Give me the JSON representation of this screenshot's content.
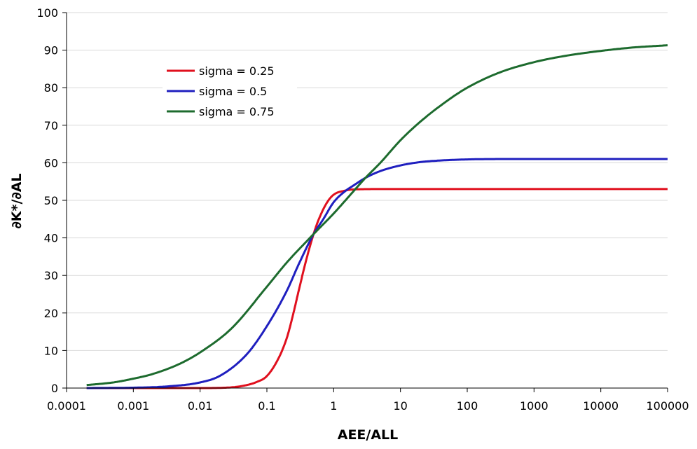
{
  "chart_data": {
    "type": "line",
    "xscale": "log",
    "xlim": [
      0.0001,
      100000
    ],
    "ylim": [
      0,
      100
    ],
    "x_ticks": [
      "0.0001",
      "0.001",
      "0.01",
      "0.1",
      "1",
      "10",
      "100",
      "1000",
      "10000",
      "100000"
    ],
    "y_ticks": [
      "0",
      "10",
      "20",
      "30",
      "40",
      "50",
      "60",
      "70",
      "80",
      "90",
      "100"
    ],
    "xlabel": "AEE/ALL",
    "ylabel": "∂K*/∂AL",
    "grid": "horizontal",
    "legend": "upper-left",
    "series": [
      {
        "name": "sigma = 0.25",
        "color": "#e0101e",
        "x": [
          0.0002,
          0.01,
          0.03,
          0.05,
          0.07,
          0.1,
          0.15,
          0.2,
          0.25,
          0.3,
          0.4,
          0.5,
          0.6,
          0.8,
          1,
          1.5,
          2,
          5,
          100000
        ],
        "y": [
          0,
          0,
          0.2,
          0.8,
          1.6,
          3.2,
          8,
          13.5,
          20,
          26,
          35,
          41,
          45,
          49.5,
          51.5,
          52.6,
          52.9,
          53,
          53
        ]
      },
      {
        "name": "sigma = 0.5",
        "color": "#1f1fbf",
        "x": [
          0.0002,
          0.001,
          0.003,
          0.01,
          0.02,
          0.05,
          0.1,
          0.2,
          0.3,
          0.5,
          0.7,
          1,
          1.5,
          2,
          3,
          5,
          10,
          20,
          50,
          100,
          300,
          100000
        ],
        "y": [
          0,
          0.1,
          0.4,
          1.5,
          3.3,
          9,
          16.5,
          26,
          33,
          41,
          45,
          49.5,
          52.5,
          54,
          56,
          57.8,
          59.3,
          60.2,
          60.7,
          60.9,
          61,
          61
        ]
      },
      {
        "name": "sigma = 0.75",
        "color": "#1d6b2e",
        "x": [
          0.0002,
          0.0005,
          0.001,
          0.002,
          0.005,
          0.01,
          0.03,
          0.1,
          0.2,
          0.5,
          1,
          2,
          3,
          5,
          10,
          20,
          50,
          100,
          300,
          1000,
          3000,
          10000,
          30000,
          100000
        ],
        "y": [
          0.8,
          1.5,
          2.5,
          3.8,
          6.5,
          9.5,
          16,
          27,
          33.5,
          41,
          46.5,
          52.5,
          56,
          60,
          66,
          71,
          76.5,
          80,
          84,
          86.8,
          88.5,
          89.8,
          90.7,
          91.3
        ]
      }
    ]
  }
}
